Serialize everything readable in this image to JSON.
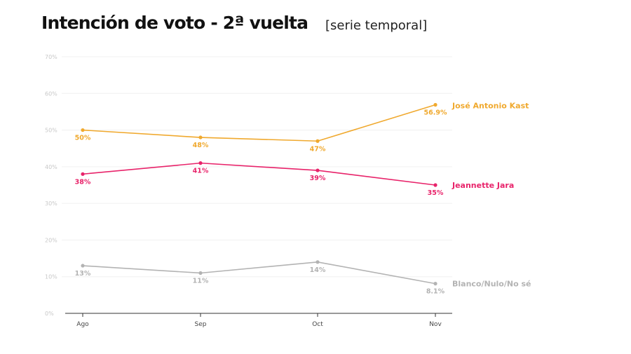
{
  "title": "Intención de voto - 2ª vuelta",
  "subtitle": "[serie temporal]",
  "chart_data": {
    "type": "line",
    "categories": [
      "Ago",
      "Sep",
      "Oct",
      "Nov"
    ],
    "ylim": [
      0,
      70
    ],
    "yticks": [
      0,
      10,
      20,
      30,
      40,
      50,
      60,
      70
    ],
    "ytick_labels": [
      "0%",
      "10%",
      "20%",
      "30%",
      "40%",
      "50%",
      "60%",
      "70%"
    ],
    "grid": true,
    "series": [
      {
        "name": "José Antonio Kast",
        "color": "#f0a92e",
        "values": [
          50,
          48,
          47,
          56.9
        ],
        "labels": [
          "50%",
          "48%",
          "47%",
          "56.9%"
        ]
      },
      {
        "name": "Jeannette Jara",
        "color": "#e8236a",
        "values": [
          38,
          41,
          39,
          35
        ],
        "labels": [
          "38%",
          "41%",
          "39%",
          "35%"
        ]
      },
      {
        "name": "Blanco/Nulo/No sé",
        "color": "#b3b3b3",
        "values": [
          13,
          11,
          14,
          8.1
        ],
        "labels": [
          "13%",
          "11%",
          "14%",
          "8.1%"
        ]
      }
    ]
  }
}
